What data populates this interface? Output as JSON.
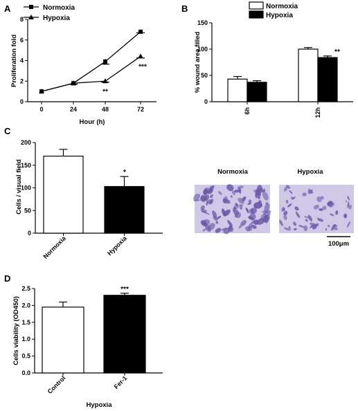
{
  "panels": {
    "A": {
      "label": "A"
    },
    "B": {
      "label": "B"
    },
    "C": {
      "label": "C"
    },
    "D": {
      "label": "D"
    }
  },
  "colors": {
    "axis": "#000000",
    "white_bar": "#ffffff",
    "black_bar": "#000000",
    "stain": "#6b5aa8",
    "stain_bg": "#cfc8e6"
  },
  "micrograph": {
    "left_label": "Normoxia",
    "right_label": "Hypoxia",
    "scale_bar": "100μm"
  },
  "chart_data": [
    {
      "id": "A",
      "type": "line",
      "title": "",
      "xlabel": "Hour (h)",
      "ylabel": "Proliferation fold",
      "x": [
        0,
        24,
        48,
        72
      ],
      "xticks": [
        "0",
        "24",
        "48",
        "72"
      ],
      "yticks": [
        "0",
        "2",
        "4",
        "6",
        "8"
      ],
      "ylim": [
        0,
        8
      ],
      "legend_position": "top-left",
      "series": [
        {
          "name": "Normoxia",
          "marker": "square",
          "values": [
            1.0,
            1.8,
            3.9,
            6.8
          ],
          "errors": [
            0.05,
            0.1,
            0.25,
            0.1
          ]
        },
        {
          "name": "Hypoxia",
          "marker": "triangle",
          "values": [
            1.0,
            1.8,
            2.0,
            4.4
          ],
          "errors": [
            0.05,
            0.1,
            0.1,
            0.15
          ]
        }
      ],
      "annotations": [
        {
          "x": 48,
          "text": "**"
        },
        {
          "x": 72,
          "text": "***"
        }
      ]
    },
    {
      "id": "B",
      "type": "bar",
      "title": "",
      "xlabel": "",
      "ylabel": "% wound area filled",
      "categories": [
        "6h",
        "12h"
      ],
      "yticks": [
        "0",
        "50",
        "100",
        "150"
      ],
      "ylim": [
        0,
        150
      ],
      "legend_position": "top",
      "series": [
        {
          "name": "Normoxia",
          "fill": "white",
          "values": [
            43,
            100
          ],
          "errors": [
            5,
            3
          ]
        },
        {
          "name": "Hypoxia",
          "fill": "black",
          "values": [
            37,
            84
          ],
          "errors": [
            3,
            3
          ]
        }
      ],
      "annotations": [
        {
          "category": "12h",
          "text": "**"
        }
      ]
    },
    {
      "id": "C",
      "type": "bar",
      "title": "",
      "xlabel": "",
      "ylabel": "Cells / visual field",
      "categories": [
        "Normoxia",
        "Hypoxia"
      ],
      "fills": [
        "white",
        "black"
      ],
      "values": [
        170,
        103
      ],
      "errors": [
        15,
        22
      ],
      "yticks": [
        "0",
        "50",
        "100",
        "150",
        "200"
      ],
      "ylim": [
        0,
        200
      ],
      "annotations": [
        {
          "category": "Hypoxia",
          "text": "*"
        }
      ]
    },
    {
      "id": "D",
      "type": "bar",
      "title": "",
      "xlabel": "Hypoxia",
      "ylabel": "Cells viability (OD450)",
      "categories": [
        "Control",
        "Fer-1"
      ],
      "fills": [
        "white",
        "black"
      ],
      "values": [
        1.95,
        2.3
      ],
      "errors": [
        0.15,
        0.06
      ],
      "yticks": [
        "0.0",
        "0.5",
        "1.0",
        "1.5",
        "2.0",
        "2.5"
      ],
      "ylim": [
        0,
        2.5
      ],
      "annotations": [
        {
          "category": "Fer-1",
          "text": "***"
        }
      ]
    }
  ]
}
